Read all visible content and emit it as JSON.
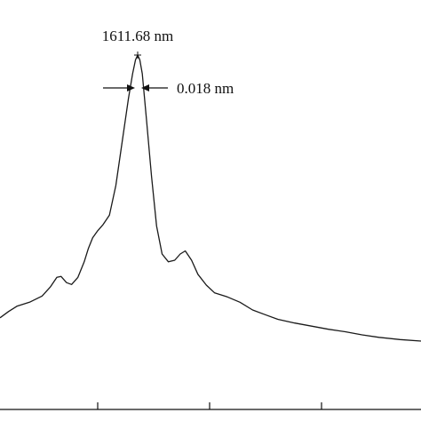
{
  "chart_data": {
    "type": "line",
    "title": "",
    "xlabel": "",
    "ylabel": "",
    "grid": false,
    "legend": "none",
    "line_color": "#1a1a1a",
    "axis_color": "#111111",
    "x_ticks_count": 3,
    "series": [
      {
        "values": [
          [
            0.0,
            0.155
          ],
          [
            0.02,
            0.175
          ],
          [
            0.04,
            0.192
          ],
          [
            0.07,
            0.205
          ],
          [
            0.1,
            0.225
          ],
          [
            0.12,
            0.255
          ],
          [
            0.135,
            0.285
          ],
          [
            0.145,
            0.288
          ],
          [
            0.158,
            0.268
          ],
          [
            0.17,
            0.262
          ],
          [
            0.185,
            0.285
          ],
          [
            0.2,
            0.335
          ],
          [
            0.21,
            0.378
          ],
          [
            0.22,
            0.412
          ],
          [
            0.232,
            0.435
          ],
          [
            0.245,
            0.455
          ],
          [
            0.26,
            0.485
          ],
          [
            0.275,
            0.58
          ],
          [
            0.29,
            0.72
          ],
          [
            0.305,
            0.86
          ],
          [
            0.315,
            0.94
          ],
          [
            0.322,
            0.985
          ],
          [
            0.327,
            1.0
          ],
          [
            0.332,
            0.985
          ],
          [
            0.338,
            0.94
          ],
          [
            0.348,
            0.79
          ],
          [
            0.36,
            0.61
          ],
          [
            0.372,
            0.45
          ],
          [
            0.385,
            0.36
          ],
          [
            0.4,
            0.335
          ],
          [
            0.415,
            0.34
          ],
          [
            0.428,
            0.36
          ],
          [
            0.44,
            0.37
          ],
          [
            0.455,
            0.34
          ],
          [
            0.47,
            0.295
          ],
          [
            0.49,
            0.26
          ],
          [
            0.51,
            0.235
          ],
          [
            0.54,
            0.222
          ],
          [
            0.57,
            0.205
          ],
          [
            0.6,
            0.18
          ],
          [
            0.63,
            0.165
          ],
          [
            0.66,
            0.15
          ],
          [
            0.7,
            0.138
          ],
          [
            0.74,
            0.128
          ],
          [
            0.78,
            0.118
          ],
          [
            0.82,
            0.11
          ],
          [
            0.86,
            0.1
          ],
          [
            0.9,
            0.092
          ],
          [
            0.95,
            0.085
          ],
          [
            1.0,
            0.08
          ]
        ]
      }
    ],
    "annotations": {
      "peak_label": "1611.68 nm",
      "width_label": "0.018 nm"
    }
  }
}
